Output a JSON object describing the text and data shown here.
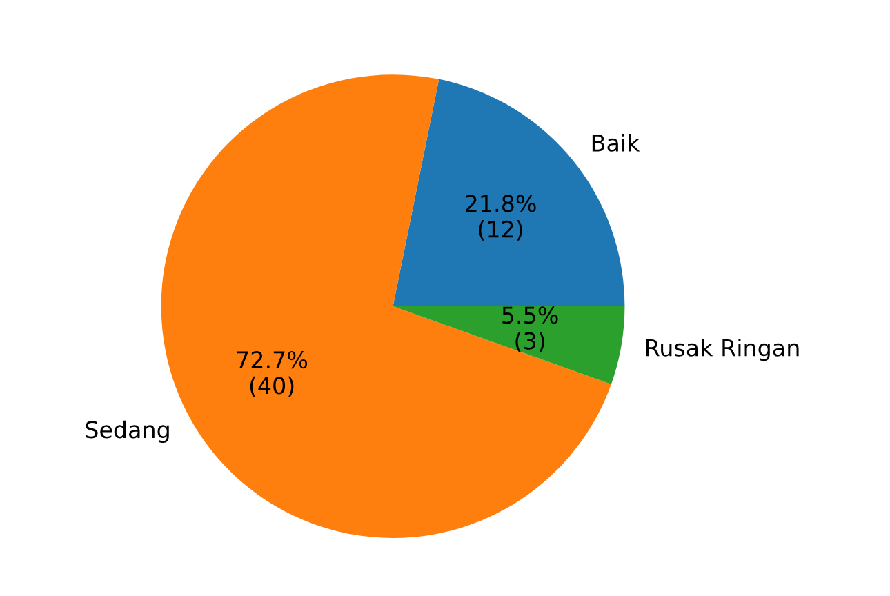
{
  "chart_data": {
    "type": "pie",
    "categories": [
      "Baik",
      "Sedang",
      "Rusak Ringan"
    ],
    "values": [
      12,
      40,
      3
    ],
    "colors": [
      "#1f77b4",
      "#ff7f0e",
      "#2ca02c"
    ],
    "value_labels": [
      "21.8%\n(12)",
      "72.7%\n(40)",
      "5.5%\n(3)"
    ]
  }
}
